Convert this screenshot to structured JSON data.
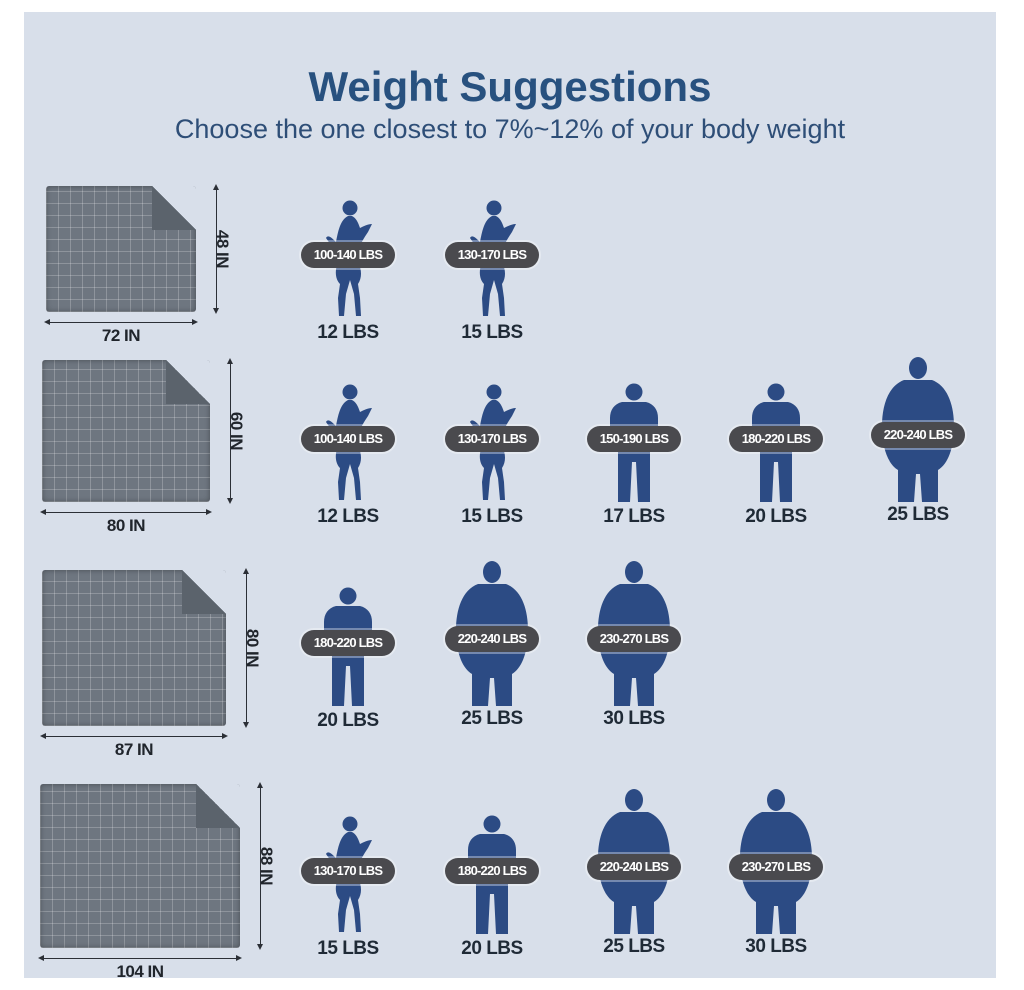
{
  "title": "Weight Suggestions",
  "subtitle": "Choose the one closest to 7%~12% of your body weight",
  "colors": {
    "panel": "#d8dfea",
    "title": "#28517f",
    "figure": "#2c4b84",
    "pill": "#4a4a4e"
  },
  "rows": [
    {
      "width_label": "72 IN",
      "height_label": "48 IN",
      "figures": [
        {
          "icon": "woman-silhouette-icon",
          "range": "100-140 LBS",
          "weight": "12 LBS"
        },
        {
          "icon": "woman-silhouette-icon",
          "range": "130-170 LBS",
          "weight": "15 LBS"
        }
      ]
    },
    {
      "width_label": "80 IN",
      "height_label": "60 IN",
      "figures": [
        {
          "icon": "woman-silhouette-icon",
          "range": "100-140 LBS",
          "weight": "12 LBS"
        },
        {
          "icon": "woman-silhouette-icon",
          "range": "130-170 LBS",
          "weight": "15 LBS"
        },
        {
          "icon": "man-silhouette-icon",
          "range": "150-190 LBS",
          "weight": "17 LBS"
        },
        {
          "icon": "man-silhouette-icon",
          "range": "180-220 LBS",
          "weight": "20 LBS"
        },
        {
          "icon": "large-man-silhouette-icon",
          "range": "220-240 LBS",
          "weight": "25 LBS"
        }
      ]
    },
    {
      "width_label": "87 IN",
      "height_label": "80 IN",
      "figures": [
        {
          "icon": "man-silhouette-icon",
          "range": "180-220 LBS",
          "weight": "20 LBS"
        },
        {
          "icon": "large-man-silhouette-icon",
          "range": "220-240 LBS",
          "weight": "25 LBS"
        },
        {
          "icon": "large-man-silhouette-icon",
          "range": "230-270 LBS",
          "weight": "30 LBS"
        }
      ]
    },
    {
      "width_label": "104 IN",
      "height_label": "88 IN",
      "figures": [
        {
          "icon": "woman-silhouette-icon",
          "range": "130-170 LBS",
          "weight": "15 LBS"
        },
        {
          "icon": "man-silhouette-icon",
          "range": "180-220 LBS",
          "weight": "20 LBS"
        },
        {
          "icon": "large-man-silhouette-icon",
          "range": "220-240 LBS",
          "weight": "25 LBS"
        },
        {
          "icon": "large-man-silhouette-icon",
          "range": "230-270 LBS",
          "weight": "30 LBS"
        }
      ]
    }
  ]
}
